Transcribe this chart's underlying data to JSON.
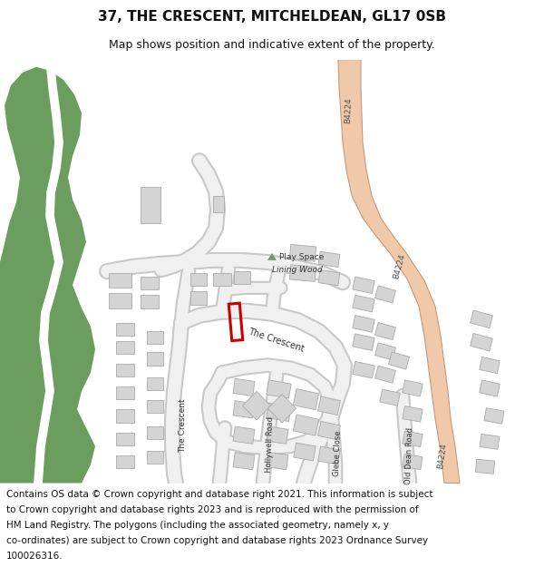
{
  "title": "37, THE CRESCENT, MITCHELDEAN, GL17 0SB",
  "subtitle": "Map shows position and indicative extent of the property.",
  "footer_lines": [
    "Contains OS data © Crown copyright and database right 2021. This information is subject",
    "to Crown copyright and database rights 2023 and is reproduced with the permission of",
    "HM Land Registry. The polygons (including the associated geometry, namely x, y",
    "co-ordinates) are subject to Crown copyright and database rights 2023 Ordnance Survey",
    "100026316."
  ],
  "bg_color": "#ffffff",
  "road_color": "#f0c8aa",
  "road_outline": "#c89878",
  "building_color": "#d4d4d4",
  "building_outline": "#aaaaaa",
  "green_color": "#6b9e5e",
  "highlight_color": "#cc0000",
  "title_fontsize": 11,
  "subtitle_fontsize": 9,
  "footer_fontsize": 7.5
}
